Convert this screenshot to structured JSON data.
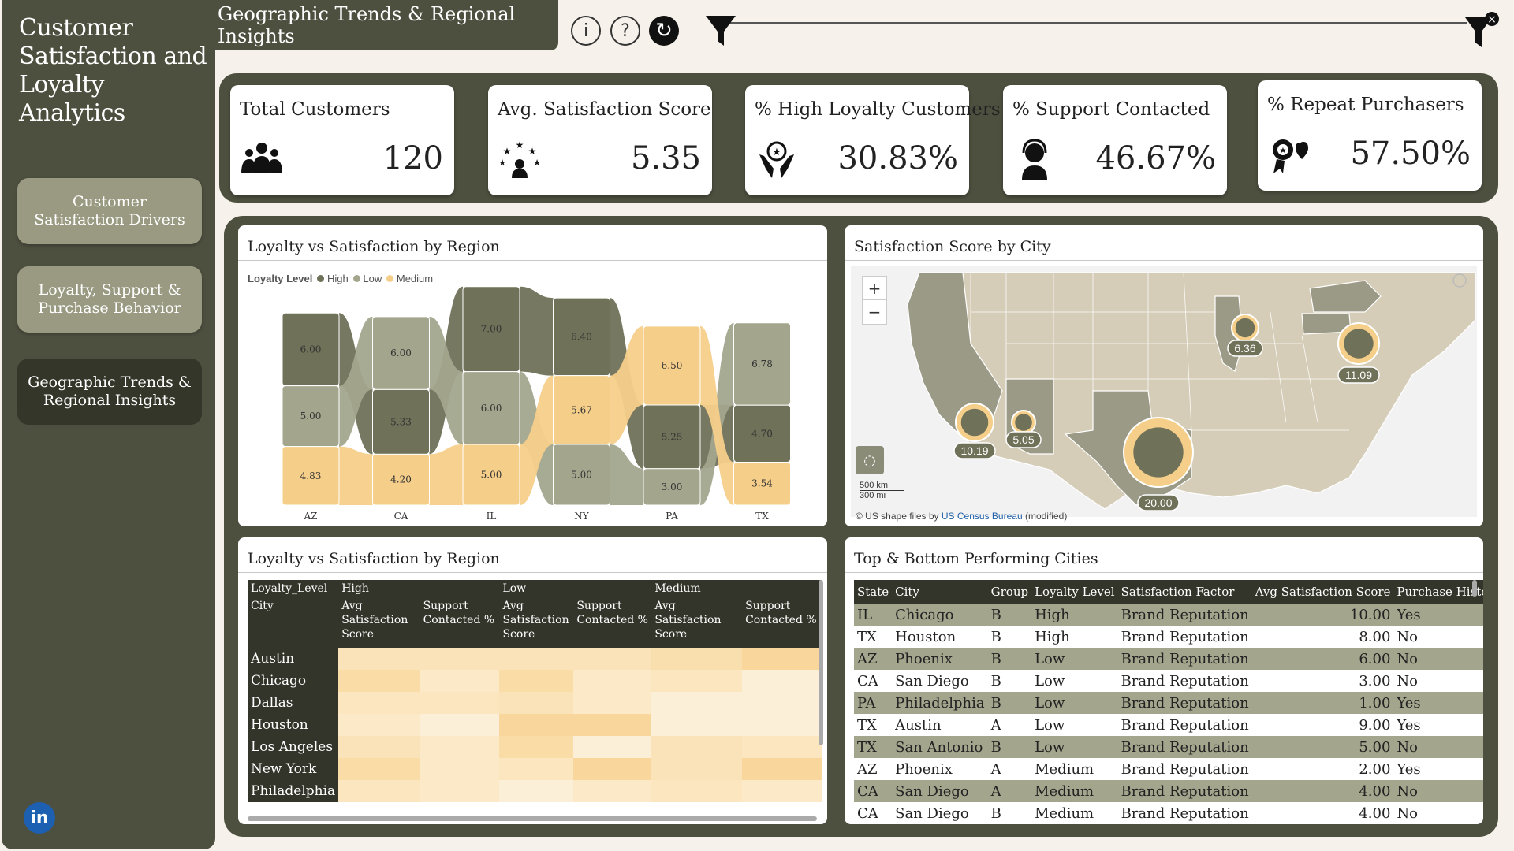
{
  "sidebar": {
    "app_title": "Customer Satisfaction and Loyalty Analytics",
    "nav": [
      {
        "label": "Customer Satisfaction Drivers",
        "active": false
      },
      {
        "label": "Loyalty, Support & Purchase Behavior",
        "active": false
      },
      {
        "label": "Geographic Trends & Regional Insights",
        "active": true
      }
    ],
    "social": "in"
  },
  "header": {
    "page_title": "Geographic Trends & Regional Insights",
    "icons": [
      "info-icon",
      "help-icon",
      "refresh-icon",
      "filter-icon",
      "clear-filter-icon"
    ]
  },
  "kpis": [
    {
      "label": "Total Customers",
      "value": "120",
      "icon": "group-icon"
    },
    {
      "label": "Avg. Satisfaction Score",
      "value": "5.35",
      "icon": "stars-icon"
    },
    {
      "label": "% High Loyalty Customers",
      "value": "30.83%",
      "icon": "hands-heart-icon"
    },
    {
      "label": "% Support Contacted",
      "value": "46.67%",
      "icon": "support-agent-icon"
    },
    {
      "label": "% Repeat Purchasers",
      "value": "57.50%",
      "icon": "award-icon"
    }
  ],
  "ribbon": {
    "title": "Loyalty vs Satisfaction by Region",
    "legend_title": "Loyalty Level",
    "legend": [
      {
        "name": "High",
        "color": "#6f7158"
      },
      {
        "name": "Low",
        "color": "#a3a68d"
      },
      {
        "name": "Medium",
        "color": "#f5cf8a"
      }
    ]
  },
  "chart_data": {
    "type": "bar",
    "subtype": "ribbon",
    "title": "Loyalty vs Satisfaction by Region",
    "categories": [
      "AZ",
      "CA",
      "IL",
      "NY",
      "PA",
      "TX"
    ],
    "series": [
      {
        "name": "High",
        "values": [
          6.0,
          5.33,
          7.0,
          6.4,
          5.25,
          4.7
        ]
      },
      {
        "name": "Low",
        "values": [
          5.0,
          6.0,
          6.0,
          5.0,
          3.0,
          6.78
        ]
      },
      {
        "name": "Medium",
        "values": [
          4.83,
          4.2,
          5.0,
          5.67,
          6.5,
          3.54
        ]
      }
    ],
    "labels": [
      [
        "6.00",
        "5.00",
        "4.83"
      ],
      [
        "6.00",
        "5.33",
        "4.20"
      ],
      [
        "7.00",
        "6.00",
        "5.00"
      ],
      [
        "6.40",
        "5.67",
        "5.00"
      ],
      [
        "6.50",
        "5.25",
        "3.00"
      ],
      [
        "6.78",
        "4.70",
        "3.54"
      ]
    ]
  },
  "map": {
    "title": "Satisfaction Score by City",
    "zoom_in": "+",
    "zoom_out": "−",
    "scale_km": "500 km",
    "scale_mi": "300 mi",
    "attribution_prefix": "© US shape files by ",
    "attribution_link": "US Census Bureau",
    "attribution_suffix": " (modified)",
    "bubbles": [
      {
        "label": "10.19"
      },
      {
        "label": "5.05"
      },
      {
        "label": "20.00"
      },
      {
        "label": "6.36"
      },
      {
        "label": "11.09"
      }
    ]
  },
  "matrix": {
    "title": "Loyalty vs Satisfaction by Region",
    "corner1": "Loyalty_Level",
    "corner2": "City",
    "groups": [
      "High",
      "Low",
      "Medium"
    ],
    "subheaders": [
      "Avg Satisfaction Score",
      "Support Contacted %",
      "Avg Satisfaction Score",
      "Support Contacted %",
      "Avg Satisfaction Score",
      "Support Contacted %"
    ],
    "cities": [
      "Austin",
      "Chicago",
      "Dallas",
      "Houston",
      "Los Angeles",
      "New York",
      "Philadelphia"
    ],
    "heat": [
      [
        "#fae3b8",
        "#fae3b8",
        "#fae3b8",
        "#fae3b8",
        "#fadfae",
        "#f9d79c"
      ],
      [
        "#f9dca6",
        "#fbe9c8",
        "#f9dca6",
        "#fbe9c8",
        "#fbe6c0",
        "#fcefd7"
      ],
      [
        "#fbe6c0",
        "#fbe6c0",
        "#fae3b8",
        "#fbe9c8",
        "#fcefd7",
        "#fcefd7"
      ],
      [
        "#fbe9c8",
        "#fcefd7",
        "#f9d79c",
        "#f9d79c",
        "#fcefd7",
        "#fcefd7"
      ],
      [
        "#fae3b8",
        "#fbe9c8",
        "#f9dca6",
        "#fcefd7",
        "#fae3b8",
        "#fbe6c0"
      ],
      [
        "#f9dca6",
        "#fbe9c8",
        "#fbe6c0",
        "#f9d79c",
        "#fae3b8",
        "#f9d79c"
      ],
      [
        "#fbe6c0",
        "#fbe9c8",
        "#fcefd7",
        "#fbe9c8",
        "#fbe6c0",
        "#fbe9c8"
      ]
    ]
  },
  "cities_table": {
    "title": "Top & Bottom Performing Cities",
    "columns": [
      "State",
      "City",
      "Group",
      "Loyalty Level",
      "Satisfaction Factor",
      "Avg Satisfaction Score",
      "Purchase History"
    ],
    "rows": [
      [
        "IL",
        "Chicago",
        "B",
        "High",
        "Brand Reputation",
        "10.00",
        "Yes"
      ],
      [
        "TX",
        "Houston",
        "B",
        "High",
        "Brand Reputation",
        "8.00",
        "No"
      ],
      [
        "AZ",
        "Phoenix",
        "B",
        "Low",
        "Brand Reputation",
        "6.00",
        "No"
      ],
      [
        "CA",
        "San Diego",
        "B",
        "Low",
        "Brand Reputation",
        "3.00",
        "No"
      ],
      [
        "PA",
        "Philadelphia",
        "B",
        "Low",
        "Brand Reputation",
        "1.00",
        "Yes"
      ],
      [
        "TX",
        "Austin",
        "A",
        "Low",
        "Brand Reputation",
        "9.00",
        "Yes"
      ],
      [
        "TX",
        "San Antonio",
        "B",
        "Low",
        "Brand Reputation",
        "5.00",
        "No"
      ],
      [
        "AZ",
        "Phoenix",
        "A",
        "Medium",
        "Brand Reputation",
        "2.00",
        "Yes"
      ],
      [
        "CA",
        "San Diego",
        "A",
        "Medium",
        "Brand Reputation",
        "4.00",
        "No"
      ],
      [
        "CA",
        "San Diego",
        "B",
        "Medium",
        "Brand Reputation",
        "4.00",
        "No"
      ]
    ]
  },
  "colors": {
    "dark": "#4d4f3f",
    "darker": "#33352a",
    "high": "#6f7158",
    "low": "#a3a68d",
    "medium": "#f5cf8a",
    "map_land": "#d5cdb8"
  }
}
